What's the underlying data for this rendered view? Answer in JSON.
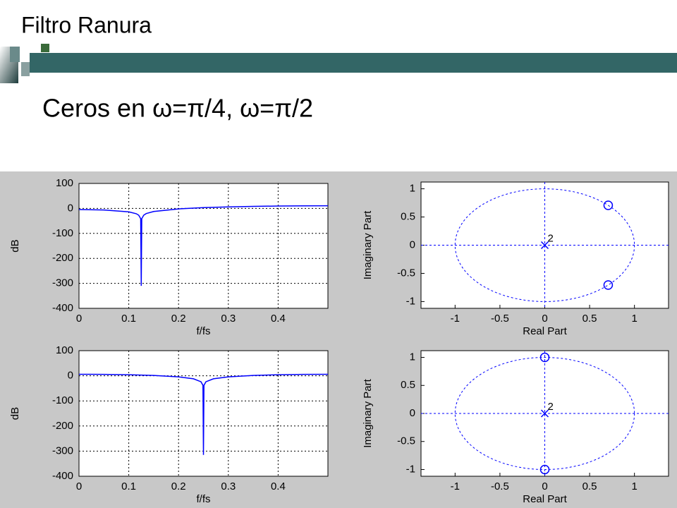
{
  "title": "Filtro Ranura",
  "subtitle": "Ceros en ω=π/4, ω=π/2",
  "chart_data": [
    {
      "type": "line",
      "xlabel": "f/fs",
      "ylabel": "dB",
      "color": "#0000ff",
      "grid": true,
      "x": [
        0,
        0.05,
        0.1,
        0.115,
        0.12,
        0.124,
        0.125,
        0.126,
        0.13,
        0.135,
        0.15,
        0.2,
        0.25,
        0.3,
        0.35,
        0.4,
        0.45,
        0.5
      ],
      "values": [
        -4.6,
        -6.2,
        -13.8,
        -21.3,
        -27.1,
        -41,
        -310,
        -41,
        -27,
        -20.7,
        -12.5,
        -2.0,
        3.0,
        6.2,
        8.3,
        9.6,
        10.4,
        10.7
      ],
      "xlim": [
        0,
        0.5
      ],
      "xticks": [
        0,
        0.1,
        0.2,
        0.3,
        0.4
      ],
      "ylim": [
        -400,
        100
      ],
      "yticks": [
        -400,
        -300,
        -200,
        -100,
        0,
        100
      ]
    },
    {
      "type": "pole-zero",
      "xlabel": "Real Part",
      "ylabel": "Imaginary Part",
      "color": "#0000ff",
      "zeros": {
        "x": [
          0.7071,
          0.7071
        ],
        "y": [
          0.7071,
          -0.7071
        ]
      },
      "poles": {
        "x": [
          0
        ],
        "y": [
          0
        ]
      },
      "pole_label": "2",
      "xlim": [
        -1.38,
        1.38
      ],
      "xticks": [
        -1,
        -0.5,
        0,
        0.5,
        1
      ],
      "ylim": [
        -1.12,
        1.12
      ],
      "yticks": [
        -1,
        -0.5,
        0,
        0.5,
        1
      ]
    },
    {
      "type": "line",
      "xlabel": "f/fs",
      "ylabel": "dB",
      "color": "#0000ff",
      "grid": true,
      "x": [
        0,
        0.05,
        0.1,
        0.15,
        0.2,
        0.23,
        0.245,
        0.249,
        0.25,
        0.251,
        0.255,
        0.27,
        0.3,
        0.35,
        0.4,
        0.45,
        0.5
      ],
      "values": [
        6.0,
        5.6,
        4.2,
        1.4,
        -4.2,
        -12.0,
        -24.0,
        -38,
        -315,
        -38,
        -24.0,
        -12.0,
        -4.2,
        1.4,
        4.2,
        5.6,
        6.0
      ],
      "xlim": [
        0,
        0.5
      ],
      "xticks": [
        0,
        0.1,
        0.2,
        0.3,
        0.4
      ],
      "ylim": [
        -400,
        100
      ],
      "yticks": [
        -400,
        -300,
        -200,
        -100,
        0,
        100
      ]
    },
    {
      "type": "pole-zero",
      "xlabel": "Real Part",
      "ylabel": "Imaginary Part",
      "color": "#0000ff",
      "zeros": {
        "x": [
          0,
          0
        ],
        "y": [
          1,
          -1
        ]
      },
      "poles": {
        "x": [
          0
        ],
        "y": [
          0
        ]
      },
      "pole_label": "2",
      "xlim": [
        -1.38,
        1.38
      ],
      "xticks": [
        -1,
        -0.5,
        0,
        0.5,
        1
      ],
      "ylim": [
        -1.12,
        1.12
      ],
      "yticks": [
        -1,
        -0.5,
        0,
        0.5,
        1
      ]
    }
  ]
}
